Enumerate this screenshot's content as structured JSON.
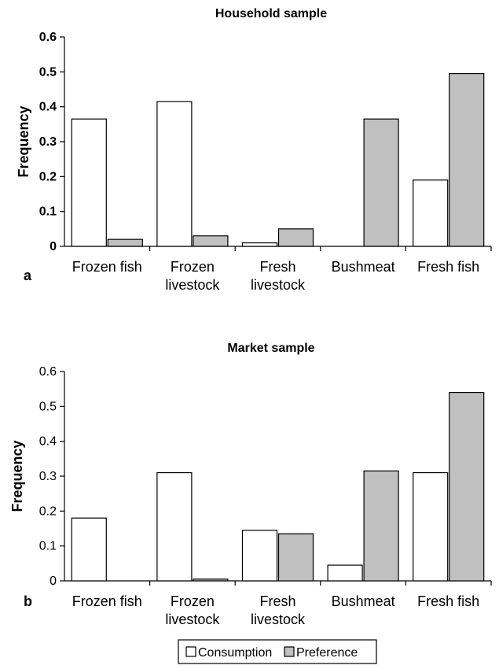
{
  "legend": {
    "items": [
      {
        "label": "Consumption",
        "color": "#ffffff"
      },
      {
        "label": "Preference",
        "color": "#c0c0c0"
      }
    ]
  },
  "chart_data": [
    {
      "type": "bar",
      "panel_label": "a",
      "title": "Household sample",
      "ylabel": "Frequency",
      "xlabel": "",
      "ylim": [
        0,
        0.6
      ],
      "yticks": [
        "0",
        "0.1",
        "0.2",
        "0.3",
        "0.4",
        "0.5",
        "0.6"
      ],
      "categories": [
        "Frozen fish",
        "Frozen livestock",
        "Fresh livestock",
        "Bushmeat",
        "Fresh fish"
      ],
      "series": [
        {
          "name": "Consumption",
          "color": "#ffffff",
          "values": [
            0.365,
            0.415,
            0.01,
            0.0,
            0.19
          ]
        },
        {
          "name": "Preference",
          "color": "#c0c0c0",
          "values": [
            0.02,
            0.03,
            0.05,
            0.365,
            0.495
          ]
        }
      ],
      "grid": false
    },
    {
      "type": "bar",
      "panel_label": "b",
      "title": "Market sample",
      "ylabel": "Frequency",
      "xlabel": "",
      "ylim": [
        0,
        0.6
      ],
      "yticks": [
        "0",
        "0.1",
        "0.2",
        "0.3",
        "0.4",
        "0.5",
        "0.6"
      ],
      "categories": [
        "Frozen fish",
        "Frozen livestock",
        "Fresh livestock",
        "Bushmeat",
        "Fresh fish"
      ],
      "series": [
        {
          "name": "Consumption",
          "color": "#ffffff",
          "values": [
            0.18,
            0.31,
            0.145,
            0.045,
            0.31
          ]
        },
        {
          "name": "Preference",
          "color": "#c0c0c0",
          "values": [
            0.0,
            0.005,
            0.135,
            0.315,
            0.54
          ]
        }
      ],
      "grid": false
    }
  ]
}
